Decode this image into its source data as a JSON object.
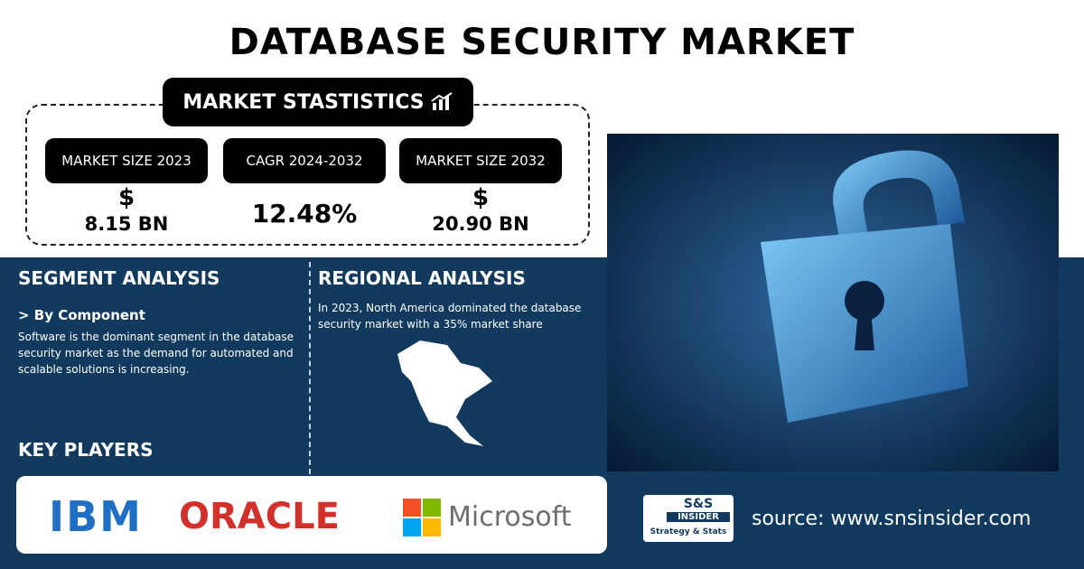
{
  "header": {
    "title": "DATABASE SECURITY MARKET"
  },
  "stats": {
    "title": "MARKET STASTISTICS",
    "items": [
      {
        "label": "MARKET SIZE 2023",
        "currency": "$",
        "value": "8.15 BN"
      },
      {
        "label": "CAGR 2024-2032",
        "value": "12.48%"
      },
      {
        "label": "MARKET SIZE 2032",
        "currency": "$",
        "value": "20.90 BN"
      }
    ]
  },
  "segment": {
    "title": "SEGMENT ANALYSIS",
    "subtitle": "> By Component",
    "text": "Software is the dominant segment in the database security market as the demand for automated and scalable solutions is increasing."
  },
  "regional": {
    "title": "REGIONAL ANALYSIS",
    "text": "In 2023, North America dominated the database security market with a 35% market share"
  },
  "key_players": {
    "title": "KEY PLAYERS",
    "logos": [
      "IBM",
      "ORACLE",
      "Microsoft"
    ]
  },
  "brand": {
    "name": "S&S",
    "sub": "INSIDER",
    "tagline": "Strategy & Stats"
  },
  "source": "source: www.snsinsider.com"
}
